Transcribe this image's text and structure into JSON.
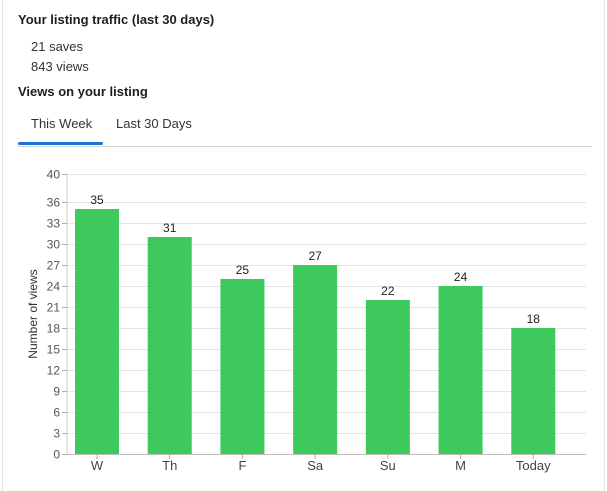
{
  "traffic": {
    "heading": "Your listing traffic (last 30 days)",
    "saves": "21 saves",
    "views": "843 views"
  },
  "views_section": {
    "heading": "Views on your listing"
  },
  "tabs": [
    {
      "label": "This Week",
      "active": true
    },
    {
      "label": "Last 30 Days",
      "active": false
    }
  ],
  "colors": {
    "bar": "#3ec95c",
    "active_tab": "#1a73d9"
  },
  "chart_data": {
    "type": "bar",
    "categories": [
      "W",
      "Th",
      "F",
      "Sa",
      "Su",
      "M",
      "Today"
    ],
    "values": [
      35,
      31,
      25,
      27,
      22,
      24,
      18
    ],
    "ylabel": "Number of views",
    "ylim": [
      0,
      40
    ],
    "yticks": [
      0,
      3,
      6,
      9,
      12,
      15,
      18,
      21,
      24,
      27,
      30,
      33,
      36,
      40
    ],
    "grid": true,
    "data_labels": true
  }
}
